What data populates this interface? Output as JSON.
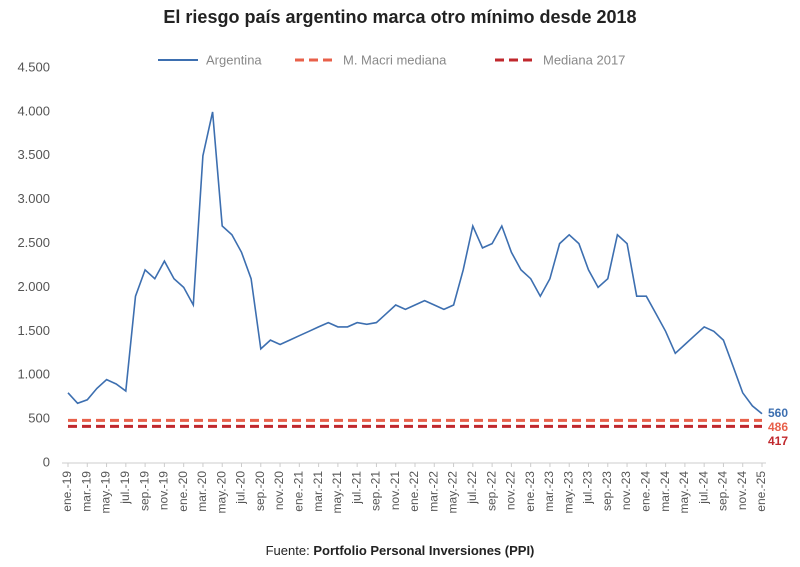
{
  "chart_data": {
    "type": "line",
    "title": "El riesgo país argentino marca otro mínimo desde 2018",
    "source_label": "Fuente:",
    "source": "Portfolio Personal Inversiones (PPI)",
    "categories": [
      "ene.-19",
      null,
      "mar.-19",
      null,
      "may.-19",
      null,
      "jul.-19",
      null,
      "sep.-19",
      null,
      "nov.-19",
      null,
      "ene.-20",
      null,
      "mar.-20",
      null,
      "may.-20",
      null,
      "jul.-20",
      null,
      "sep.-20",
      null,
      "nov.-20",
      null,
      "ene.-21",
      null,
      "mar.-21",
      null,
      "may.-21",
      null,
      "jul.-21",
      null,
      "sep.-21",
      null,
      "nov.-21",
      null,
      "ene.-22",
      null,
      "mar.-22",
      null,
      "may.-22",
      null,
      "jul.-22",
      null,
      "sep.-22",
      null,
      "nov.-22",
      null,
      "ene.-23",
      null,
      "mar.-23",
      null,
      "may.-23",
      null,
      "jul.-23",
      null,
      "sep.-23",
      null,
      "nov.-23",
      null,
      "ene.-24",
      null,
      "mar.-24",
      null,
      "may.-24",
      null,
      "jul.-24",
      null,
      "sep.-24",
      null,
      "nov.-24",
      null,
      "ene.-25"
    ],
    "series": [
      {
        "name": "Argentina",
        "color": "#3d6fb0",
        "values": [
          800,
          680,
          720,
          850,
          950,
          900,
          820,
          1900,
          2200,
          2100,
          2300,
          2100,
          2000,
          1800,
          3500,
          4000,
          2700,
          2600,
          2400,
          2100,
          1300,
          1400,
          1350,
          1400,
          1450,
          1500,
          1550,
          1600,
          1550,
          1550,
          1600,
          1580,
          1600,
          1700,
          1800,
          1750,
          1800,
          1850,
          1800,
          1750,
          1800,
          2200,
          2700,
          2450,
          2500,
          2700,
          2400,
          2200,
          2100,
          1900,
          2100,
          2500,
          2600,
          2500,
          2200,
          2000,
          2100,
          2600,
          2500,
          1900,
          1900,
          1700,
          1500,
          1250,
          1350,
          1450,
          1550,
          1500,
          1400,
          1100,
          800,
          650,
          560
        ]
      },
      {
        "name": "M. Macri mediana",
        "color": "#e8604a",
        "value": 486
      },
      {
        "name": "Mediana 2017",
        "color": "#c0282d",
        "value": 417
      }
    ],
    "ylim": [
      0,
      4500
    ],
    "yticks": [
      0,
      500,
      {
        "value": 1000,
        "label": "1.000"
      },
      {
        "value": 1500,
        "label": "1.500"
      },
      {
        "value": 2000,
        "label": "2.000"
      },
      {
        "value": 2500,
        "label": "2.500"
      },
      {
        "value": 3000,
        "label": "3.000"
      },
      {
        "value": 3500,
        "label": "3.500"
      },
      {
        "value": 4000,
        "label": "4.000"
      },
      {
        "value": 4500,
        "label": "4.500"
      }
    ],
    "legend": "top"
  }
}
